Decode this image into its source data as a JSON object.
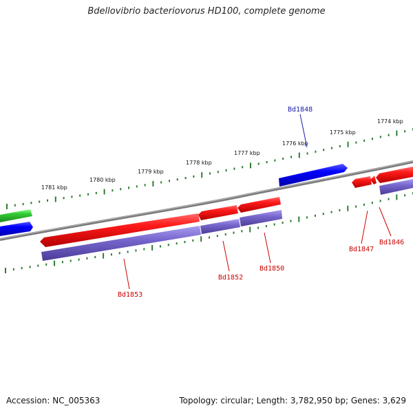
{
  "title": "Bdellovibrio bacteriovorus HD100, complete genome",
  "footer": {
    "accession": "Accession: NC_005363",
    "summary": "Topology: circular; Length: 3,782,950 bp; Genes: 3,629"
  },
  "ruler_labels": [
    "1781 kbp",
    "1780 kbp",
    "1779 kbp",
    "1778 kbp",
    "1777 kbp",
    "1776 kbp",
    "1775 kbp",
    "1774 kbp"
  ],
  "gene_labels": {
    "forward": [
      "Bd1848"
    ],
    "reverse": [
      "Bd1853",
      "Bd1852",
      "Bd1850",
      "Bd1847",
      "Bd1846"
    ]
  },
  "colors": {
    "forward_gene": "#0000ee",
    "reverse_gene": "#ee1111",
    "cds": "#7766cc",
    "other_feature": "#33cc33",
    "ruler": "#2e7d32",
    "backbone": "#888888",
    "forward_label": "#1a1aaa",
    "reverse_label": "#cc0000"
  }
}
